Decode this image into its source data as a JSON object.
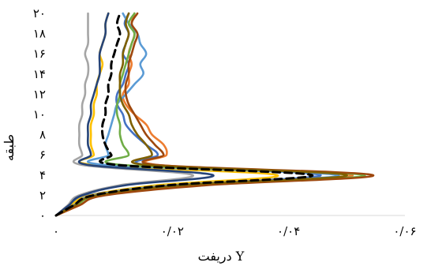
{
  "chart_data": {
    "type": "line",
    "title": "",
    "xlabel": "دریفت Y",
    "ylabel": "طبقه",
    "xlim": [
      0,
      0.06
    ],
    "ylim": [
      0,
      20
    ],
    "x_ticks": [
      {
        "value": 0,
        "label": "۰"
      },
      {
        "value": 0.02,
        "label": "۰/۰۲"
      },
      {
        "value": 0.04,
        "label": "۰/۰۴"
      },
      {
        "value": 0.06,
        "label": "۰/۰۶"
      }
    ],
    "y_ticks": [
      {
        "value": 0,
        "label": "۰"
      },
      {
        "value": 2,
        "label": "۲"
      },
      {
        "value": 4,
        "label": "۴"
      },
      {
        "value": 6,
        "label": "۶"
      },
      {
        "value": 8,
        "label": "۸"
      },
      {
        "value": 10,
        "label": "۱۰"
      },
      {
        "value": 12,
        "label": "۱۲"
      },
      {
        "value": 14,
        "label": "۱۴"
      },
      {
        "value": 16,
        "label": "۱۶"
      },
      {
        "value": 18,
        "label": "۱۸"
      },
      {
        "value": 20,
        "label": "۲۰"
      }
    ],
    "grid": false,
    "legend": "none",
    "stories": [
      0,
      1,
      2,
      3,
      4,
      5,
      6,
      7,
      8,
      9,
      10,
      11,
      12,
      13,
      14,
      15,
      16,
      17,
      18,
      19,
      20
    ],
    "series": [
      {
        "color": "#4472C4",
        "dashed": false,
        "values": [
          0,
          0.0025,
          0.0055,
          0.0195,
          0.0455,
          0.0155,
          0.0175,
          0.0155,
          0.0135,
          0.012,
          0.0115,
          0.0105,
          0.0105,
          0.0115,
          0.012,
          0.0125,
          0.0115,
          0.012,
          0.0125,
          0.0118,
          0.0125
        ]
      },
      {
        "color": "#ED7D31",
        "dashed": false,
        "values": [
          0,
          0.004,
          0.008,
          0.022,
          0.051,
          0.0175,
          0.019,
          0.0185,
          0.0165,
          0.0155,
          0.0135,
          0.012,
          0.0115,
          0.0125,
          0.0125,
          0.013,
          0.0125,
          0.013,
          0.0135,
          0.013,
          0.0135
        ]
      },
      {
        "color": "#A5A5A5",
        "dashed": false,
        "values": [
          0,
          0.002,
          0.004,
          0.011,
          0.0235,
          0.0045,
          0.0045,
          0.004,
          0.004,
          0.004,
          0.0045,
          0.0045,
          0.005,
          0.005,
          0.0055,
          0.0055,
          0.005,
          0.0055,
          0.0055,
          0.0055,
          0.0055
        ]
      },
      {
        "color": "#FFC000",
        "dashed": false,
        "values": [
          0,
          0.0025,
          0.006,
          0.0175,
          0.038,
          0.0065,
          0.0065,
          0.006,
          0.006,
          0.006,
          0.0065,
          0.0065,
          0.007,
          0.007,
          0.0075,
          0.008,
          0.0075,
          0.008,
          0.0085,
          0.0085,
          0.009
        ]
      },
      {
        "color": "#5B9BD5",
        "dashed": false,
        "values": [
          0,
          0.003,
          0.0065,
          0.02,
          0.0485,
          0.0085,
          0.009,
          0.0085,
          0.009,
          0.0095,
          0.01,
          0.0105,
          0.012,
          0.0135,
          0.015,
          0.0145,
          0.0155,
          0.0145,
          0.014,
          0.0125,
          0.0115
        ]
      },
      {
        "color": "#70AD47",
        "dashed": false,
        "values": [
          0,
          0.0035,
          0.0075,
          0.023,
          0.053,
          0.0115,
          0.0125,
          0.0115,
          0.011,
          0.011,
          0.0105,
          0.0105,
          0.011,
          0.011,
          0.0115,
          0.012,
          0.0125,
          0.013,
          0.0135,
          0.0125,
          0.0135
        ]
      },
      {
        "color": "#264478",
        "dashed": false,
        "values": [
          0,
          0.0022,
          0.0045,
          0.012,
          0.027,
          0.0055,
          0.006,
          0.0055,
          0.0055,
          0.0055,
          0.006,
          0.006,
          0.0065,
          0.007,
          0.0075,
          0.0075,
          0.0075,
          0.008,
          0.0085,
          0.0085,
          0.009
        ]
      },
      {
        "color": "#9E480E",
        "dashed": false,
        "values": [
          0,
          0.004,
          0.0085,
          0.026,
          0.0545,
          0.0175,
          0.0185,
          0.017,
          0.0155,
          0.0145,
          0.0135,
          0.0125,
          0.012,
          0.012,
          0.0125,
          0.0125,
          0.013,
          0.0135,
          0.014,
          0.013,
          0.014
        ]
      },
      {
        "color": "#7F6000",
        "dashed": false,
        "values": [
          0,
          0.0032,
          0.007,
          0.0215,
          0.05,
          0.0155,
          0.0165,
          0.0155,
          0.014,
          0.013,
          0.0125,
          0.0115,
          0.011,
          0.011,
          0.011,
          0.0115,
          0.0115,
          0.012,
          0.0125,
          0.012,
          0.0125
        ]
      },
      {
        "color": "#000000",
        "dashed": true,
        "values": [
          0,
          0.003,
          0.0065,
          0.0195,
          0.044,
          0.0105,
          0.0095,
          0.0085,
          0.008,
          0.008,
          0.0085,
          0.0085,
          0.009,
          0.009,
          0.0095,
          0.0095,
          0.01,
          0.0105,
          0.011,
          0.0105,
          0.011
        ]
      }
    ]
  }
}
